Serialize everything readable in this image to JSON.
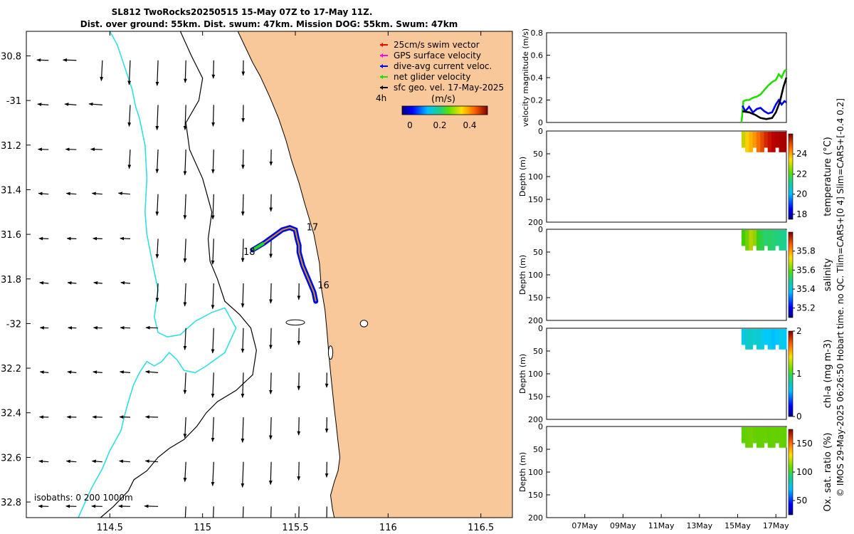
{
  "header": {
    "title": "SL812 TwoRocks20250515 15-May 07Z to 17-May 11Z.",
    "subtitle": "Dist. over ground: 55km. Dist. swum: 47km. Mission DOG: 55km. Swum: 47km"
  },
  "colors": {
    "land": "#f9c89a",
    "track": "#ff8000",
    "current": "#0000ff",
    "net_velocity": "#22dd00",
    "isobath_200": "#30e0e0",
    "vector": "#000000"
  },
  "map": {
    "legend": [
      {
        "label": "25cm/s swim vector",
        "color": "#ff0000"
      },
      {
        "label": "GPS surface velocity",
        "color": "#ff00ff"
      },
      {
        "label": "dive-avg current veloc.",
        "color": "#0000ff"
      },
      {
        "label": "net glider velocity",
        "color": "#22dd00"
      },
      {
        "label": "sfc geo. vel. 17-May-2025",
        "color": "#000000"
      }
    ],
    "colorbar": {
      "label": "(m/s)",
      "ticks": [
        "0",
        "0.2",
        "0.4"
      ],
      "side_label": "4h"
    },
    "isobath_label": "isobaths: 0   200  1000m",
    "day_markers": [
      {
        "label": "16",
        "lon": 115.62,
        "lat": -31.83
      },
      {
        "label": "17",
        "lon": 115.56,
        "lat": -31.57
      },
      {
        "label": "18",
        "lon": 115.22,
        "lat": -31.68
      }
    ]
  },
  "chart_data": [
    {
      "type": "line",
      "name": "map",
      "xlim": [
        114.05,
        116.67
      ],
      "ylim": [
        -32.87,
        -30.69
      ],
      "xticks": [
        114.5,
        115,
        115.5,
        116,
        116.5
      ],
      "xtick_labels": [
        "114.5",
        "115",
        "115.5",
        "116",
        "116.5"
      ],
      "yticks": [
        -30.8,
        -31,
        -31.2,
        -31.4,
        -31.6,
        -31.8,
        -32,
        -32.2,
        -32.4,
        -32.6,
        -32.8
      ],
      "ytick_labels": [
        "30.8",
        "-31",
        "31.2",
        "31.4",
        "31.6",
        "31.8",
        "-32",
        "32.2",
        "32.4",
        "32.6",
        "32.8"
      ],
      "glider_track": {
        "lon": [
          115.61,
          115.6,
          115.58,
          115.56,
          115.54,
          115.53,
          115.52,
          115.52,
          115.51,
          115.5,
          115.47,
          115.43,
          115.38,
          115.33,
          115.27
        ],
        "lat": [
          -31.9,
          -31.86,
          -31.82,
          -31.78,
          -31.74,
          -31.71,
          -31.68,
          -31.65,
          -31.62,
          -31.58,
          -31.57,
          -31.58,
          -31.61,
          -31.64,
          -31.67
        ]
      },
      "coastline": {
        "lon": [
          115.19,
          115.23,
          115.27,
          115.31,
          115.36,
          115.41,
          115.45,
          115.48,
          115.52,
          115.55,
          115.6,
          115.63,
          115.64,
          115.66,
          115.67,
          115.68,
          115.69,
          115.7,
          115.71,
          115.72,
          115.73,
          115.74,
          115.73,
          115.71,
          115.69,
          115.7,
          115.71,
          115.7,
          115.7
        ],
        "lat": [
          -30.69,
          -30.76,
          -30.83,
          -30.89,
          -30.98,
          -31.08,
          -31.18,
          -31.27,
          -31.37,
          -31.46,
          -31.6,
          -31.73,
          -31.84,
          -31.94,
          -32.03,
          -32.13,
          -32.22,
          -32.3,
          -32.38,
          -32.45,
          -32.53,
          -32.6,
          -32.66,
          -32.71,
          -32.77,
          -32.83,
          -32.87,
          -32.87,
          -32.87
        ]
      },
      "isobath_200": {
        "lon": [
          114.5,
          114.54,
          114.58,
          114.62,
          114.64,
          114.66,
          114.69,
          114.7,
          114.69,
          114.7,
          114.73,
          114.76,
          114.74,
          114.76,
          114.81,
          114.88,
          114.96,
          115.05,
          115.12,
          115.18,
          115.12,
          115.02,
          114.96,
          114.9,
          114.86,
          114.82,
          114.78,
          114.74,
          114.7,
          114.66,
          114.63,
          114.6,
          114.58,
          114.56,
          114.5,
          114.46,
          114.4,
          114.33
        ],
        "lat": [
          -30.69,
          -30.75,
          -30.85,
          -30.95,
          -31.03,
          -31.08,
          -31.2,
          -31.35,
          -31.5,
          -31.6,
          -31.73,
          -31.85,
          -31.97,
          -32.04,
          -32.06,
          -32.05,
          -31.99,
          -31.95,
          -31.93,
          -32.02,
          -32.13,
          -32.19,
          -32.22,
          -32.21,
          -32.16,
          -32.13,
          -32.17,
          -32.19,
          -32.17,
          -32.22,
          -32.27,
          -32.35,
          -32.41,
          -32.48,
          -32.57,
          -32.65,
          -32.74,
          -32.87
        ]
      },
      "isobath_1000": {
        "lon": [
          114.88,
          114.94,
          115.0,
          114.98,
          114.91,
          114.93,
          115.0,
          115.05,
          115.03,
          115.04,
          115.08,
          115.12,
          115.2,
          115.26,
          115.29,
          115.27,
          115.18,
          115.08,
          115.02,
          114.97,
          114.9,
          114.82,
          114.76,
          114.7,
          114.63,
          114.6,
          114.52,
          114.45
        ],
        "lat": [
          -30.69,
          -30.8,
          -30.9,
          -31.0,
          -31.1,
          -31.22,
          -31.35,
          -31.5,
          -31.62,
          -31.72,
          -31.8,
          -31.9,
          -31.96,
          -32.02,
          -32.12,
          -32.23,
          -32.3,
          -32.35,
          -32.4,
          -32.46,
          -32.52,
          -32.56,
          -32.6,
          -32.66,
          -32.7,
          -32.75,
          -32.82,
          -32.87
        ]
      }
    },
    {
      "type": "line",
      "name": "velocity",
      "ylabel": "velocity magnitude (m/s)",
      "xlim": [
        5,
        17.55
      ],
      "ylim": [
        0,
        0.8
      ],
      "yticks": [
        0,
        0.2,
        0.4,
        0.6,
        0.8
      ],
      "series": [
        {
          "color": "#22dd00",
          "x": [
            15.2,
            15.3,
            15.45,
            15.6,
            15.8,
            16.0,
            16.2,
            16.4,
            16.6,
            16.8,
            17.0,
            17.15,
            17.3,
            17.45,
            17.55
          ],
          "y": [
            0.0,
            0.19,
            0.2,
            0.2,
            0.22,
            0.23,
            0.25,
            0.29,
            0.33,
            0.36,
            0.38,
            0.43,
            0.4,
            0.46,
            0.47
          ]
        },
        {
          "color": "#0000ff",
          "x": [
            15.25,
            15.4,
            15.6,
            15.8,
            16.0,
            16.2,
            16.4,
            16.6,
            16.8,
            17.0,
            17.15,
            17.3,
            17.45,
            17.55
          ],
          "y": [
            0.15,
            0.1,
            0.14,
            0.09,
            0.12,
            0.13,
            0.1,
            0.08,
            0.09,
            0.16,
            0.2,
            0.16,
            0.19,
            0.18
          ]
        },
        {
          "color": "#000000",
          "x": [
            15.25,
            15.6,
            15.9,
            16.2,
            16.5,
            16.8,
            17.0,
            17.2,
            17.4,
            17.55
          ],
          "y": [
            0.1,
            0.09,
            0.07,
            0.04,
            0.03,
            0.04,
            0.09,
            0.18,
            0.32,
            0.4
          ]
        }
      ]
    },
    {
      "type": "heatmap",
      "name": "temperature",
      "ylabel": "Depth (m)",
      "cbar_label": "temperature (°C)",
      "ylim": [
        0,
        200
      ],
      "yticks": [
        0,
        50,
        100,
        150,
        200
      ],
      "crange": [
        17.5,
        26
      ],
      "cticks": [
        18,
        20,
        22,
        24
      ],
      "cmap": [
        "#00007f",
        "#0050ff",
        "#00c8ff",
        "#20d080",
        "#40d000",
        "#ffd000",
        "#ff8000",
        "#c00000",
        "#7f0000"
      ],
      "profile": {
        "x_start": 15.2,
        "x_end": 17.55,
        "depth_top": 0,
        "depth_bottom": 45
      },
      "values": [
        22.5,
        22.8,
        23.2,
        23.6,
        24.0,
        24.3,
        24.6,
        24.8,
        25.0,
        25.2,
        25.3,
        25.4
      ]
    },
    {
      "type": "heatmap",
      "name": "salinity",
      "ylabel": "Depth (m)",
      "cbar_label": "salinity",
      "ylim": [
        0,
        200
      ],
      "yticks": [
        0,
        50,
        100,
        150,
        200
      ],
      "crange": [
        35.1,
        36.0
      ],
      "cticks": [
        35.2,
        35.4,
        35.6,
        35.8
      ],
      "cmap": [
        "#00007f",
        "#0050ff",
        "#00c8ff",
        "#20d080",
        "#40d000",
        "#ffd000",
        "#ff8000",
        "#c00000",
        "#7f0000"
      ],
      "profile": {
        "x_start": 15.2,
        "x_end": 17.55,
        "depth_top": 0,
        "depth_bottom": 45
      },
      "values": [
        35.55,
        35.58,
        35.62,
        35.6,
        35.52,
        35.48,
        35.45,
        35.47,
        35.45,
        35.44,
        35.43,
        35.42
      ]
    },
    {
      "type": "heatmap",
      "name": "chlorophyll",
      "ylabel": "Depth (m)",
      "cbar_label": "chl-a (mg m-3)",
      "ylim": [
        0,
        200
      ],
      "yticks": [
        0,
        50,
        100,
        150,
        200
      ],
      "crange": [
        0,
        2
      ],
      "cticks": [
        0,
        1,
        2
      ],
      "cmap": [
        "#00007f",
        "#0050ff",
        "#00c8ff",
        "#20d080",
        "#40d000",
        "#ffd000",
        "#ff8000",
        "#c00000",
        "#7f0000"
      ],
      "profile": {
        "x_start": 15.2,
        "x_end": 17.55,
        "depth_top": 0,
        "depth_bottom": 45
      },
      "values": [
        0.55,
        0.6,
        0.62,
        0.58,
        0.6,
        0.55,
        0.5,
        0.52,
        0.48,
        0.5,
        0.55,
        0.5
      ]
    },
    {
      "type": "heatmap",
      "name": "oxygen",
      "ylabel": "Depth (m)",
      "cbar_label": "Ox. sat. ratio (%)",
      "ylim": [
        0,
        200
      ],
      "yticks": [
        0,
        50,
        100,
        150,
        200
      ],
      "crange": [
        25,
        175
      ],
      "cticks": [
        50,
        100,
        150
      ],
      "cmap": [
        "#00007f",
        "#0050ff",
        "#00c8ff",
        "#20d080",
        "#40d000",
        "#ffd000",
        "#ff8000",
        "#c00000",
        "#7f0000"
      ],
      "profile": {
        "x_start": 15.2,
        "x_end": 17.55,
        "depth_top": 0,
        "depth_bottom": 45
      },
      "values": [
        103,
        104,
        105,
        104,
        103,
        104,
        104,
        103,
        104,
        103,
        104,
        103
      ]
    }
  ],
  "time_axis": {
    "xlim": [
      5,
      17.55
    ],
    "ticks": [
      7,
      9,
      11,
      13,
      15,
      17
    ],
    "tick_labels": [
      "07May",
      "09May",
      "11May",
      "13May",
      "15May",
      "17May"
    ]
  },
  "side_note": "© IMOS 29-May-2025 06:26:50 Hobart time. no QC. Tlim=CARS+[0 4] Slim=CARS+[-0.4 0.2]"
}
